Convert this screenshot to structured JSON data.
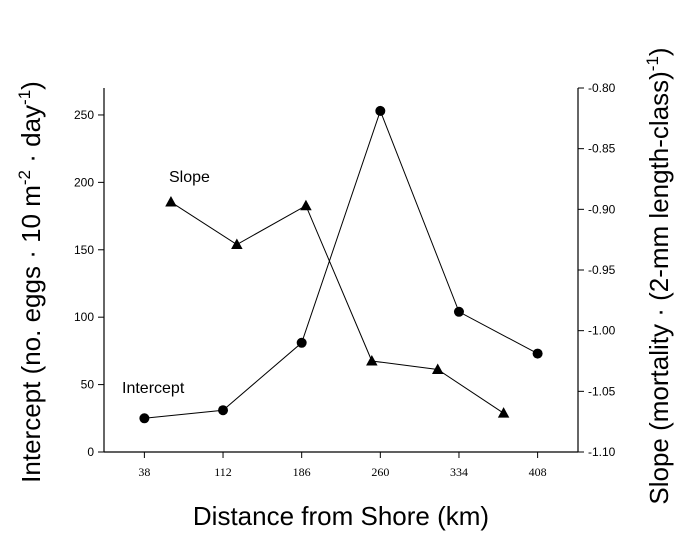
{
  "chart_data": {
    "type": "line",
    "xlabel": "Distance from Shore (km)",
    "ylabel_left": {
      "main": "Intercept (no. eggs · 10 m",
      "sup1": "-2",
      "mid": " · day",
      "sup2": "-1",
      "end": ")"
    },
    "ylabel_right": {
      "main": "Slope (mortality · (2-mm length-class)",
      "sup": "-1",
      "end": ")"
    },
    "x_ticks": [
      "38",
      "112",
      "186",
      "260",
      "334",
      "408"
    ],
    "x_range": [
      0,
      446
    ],
    "y_left_ticks": [
      "0",
      "50",
      "100",
      "150",
      "200",
      "250"
    ],
    "y_left_range": [
      0,
      270
    ],
    "y_right_ticks": [
      "-0.80",
      "-0.85",
      "-0.90",
      "-0.95",
      "-1.00",
      "-1.05",
      "-1.10"
    ],
    "y_right_range": [
      -1.1,
      -0.8
    ],
    "series": [
      {
        "name": "Intercept",
        "axis": "left",
        "marker": "circle",
        "x": [
          38,
          112,
          186,
          260,
          334,
          408
        ],
        "y": [
          25,
          31,
          81,
          253,
          104,
          73
        ]
      },
      {
        "name": "Slope",
        "axis": "right",
        "marker": "triangle",
        "x": [
          63,
          125,
          190,
          252,
          314,
          376
        ],
        "y": [
          -0.894,
          -0.929,
          -0.897,
          -1.025,
          -1.032,
          -1.068
        ]
      }
    ],
    "annotations": [
      {
        "text": "Slope",
        "series": "Slope"
      },
      {
        "text": "Intercept",
        "series": "Intercept"
      }
    ]
  }
}
